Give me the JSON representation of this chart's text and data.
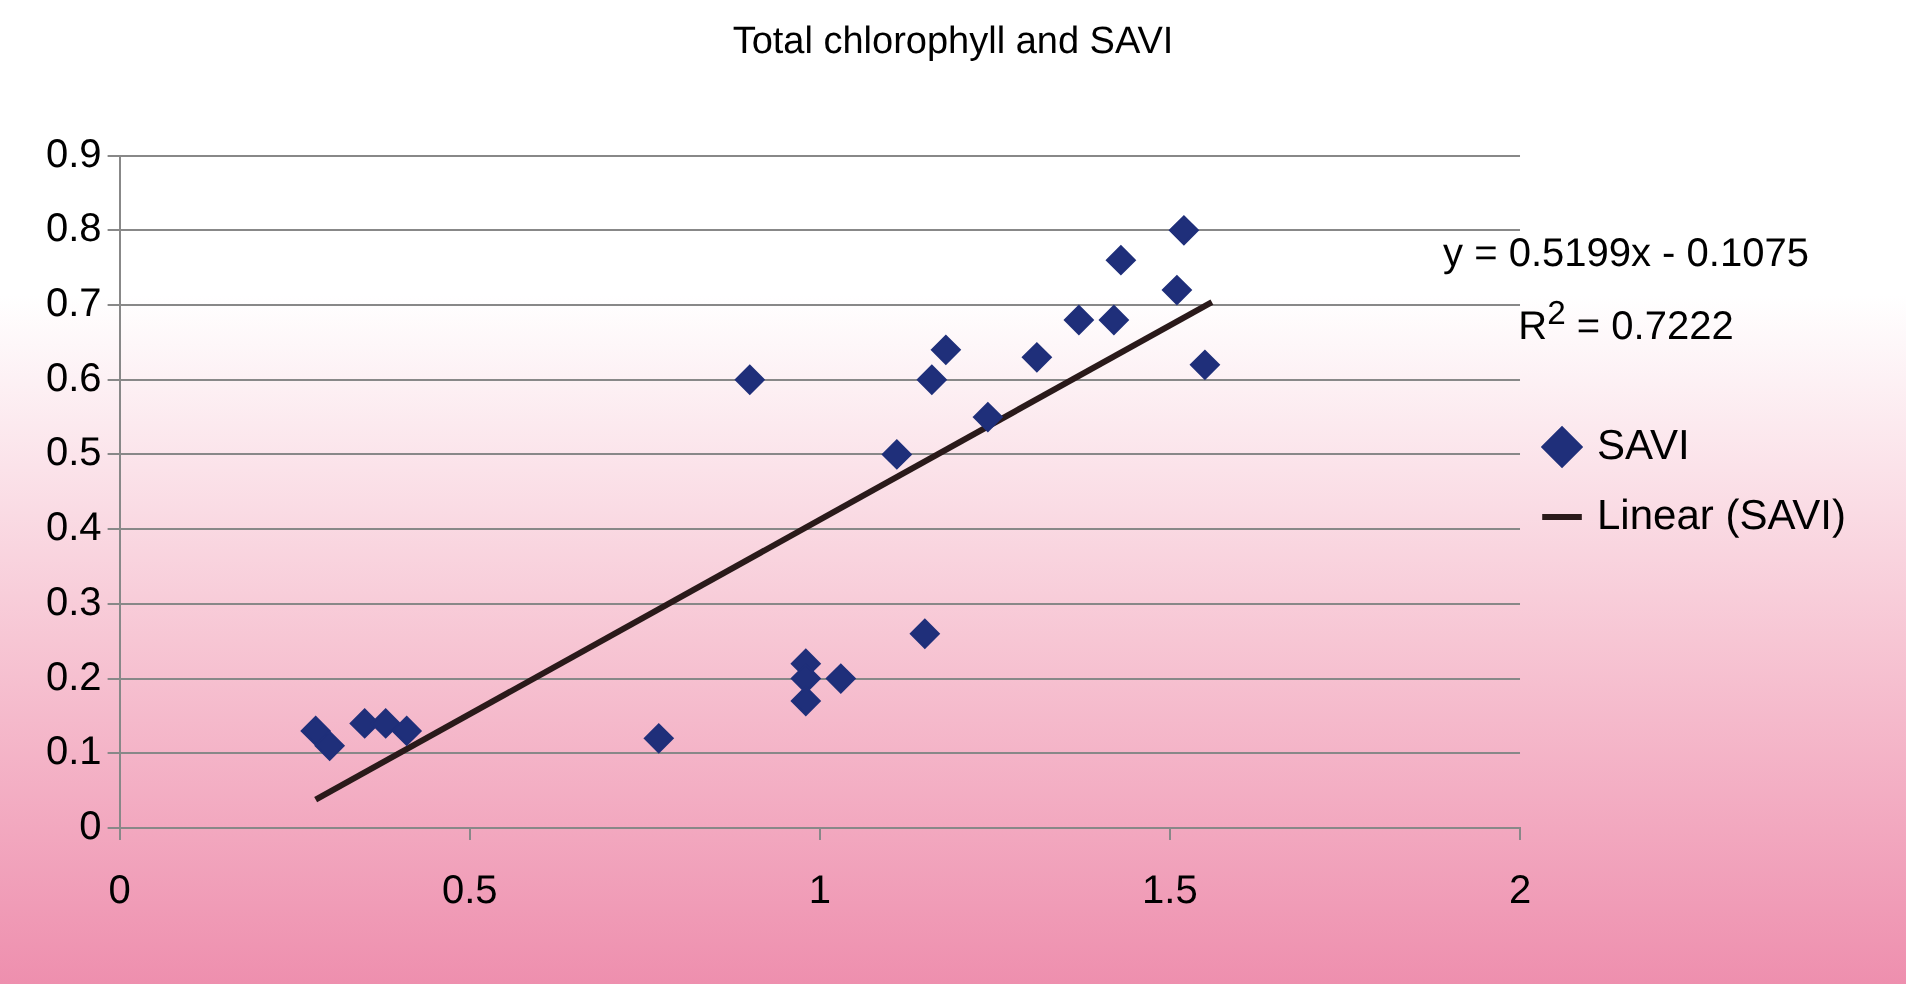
{
  "chart_data": {
    "type": "scatter",
    "title": "Total chlorophyll and SAVI",
    "series": [
      {
        "name": "SAVI",
        "color": "#1f2f7a",
        "marker": "diamond",
        "x": [
          0.28,
          0.3,
          0.35,
          0.38,
          0.41,
          0.77,
          0.9,
          0.98,
          0.98,
          0.98,
          1.03,
          1.15,
          1.11,
          1.16,
          1.18,
          1.24,
          1.31,
          1.37,
          1.42,
          1.43,
          1.51,
          1.52,
          1.55
        ],
        "values": [
          0.13,
          0.11,
          0.14,
          0.14,
          0.13,
          0.12,
          0.6,
          0.22,
          0.2,
          0.17,
          0.2,
          0.26,
          0.5,
          0.6,
          0.64,
          0.55,
          0.63,
          0.68,
          0.68,
          0.76,
          0.72,
          0.8,
          0.62
        ]
      },
      {
        "name": "Linear (SAVI)",
        "type": "line",
        "color": "#2a1a1a",
        "marker": "none",
        "x": [
          0.28,
          1.56
        ],
        "values": [
          0.038,
          0.704
        ]
      }
    ],
    "xlim": [
      0,
      2
    ],
    "xticks": [
      0,
      0.5,
      1,
      1.5,
      2
    ],
    "ylim": [
      0,
      0.9
    ],
    "yticks": [
      0,
      0.1,
      0.2,
      0.3,
      0.4,
      0.5,
      0.6,
      0.7,
      0.8,
      0.9
    ],
    "grid": "y",
    "legend": "right",
    "annotations": [
      "y = 0.5199x - 0.1075",
      "R$^{2}$ = 0.7222"
    ]
  }
}
